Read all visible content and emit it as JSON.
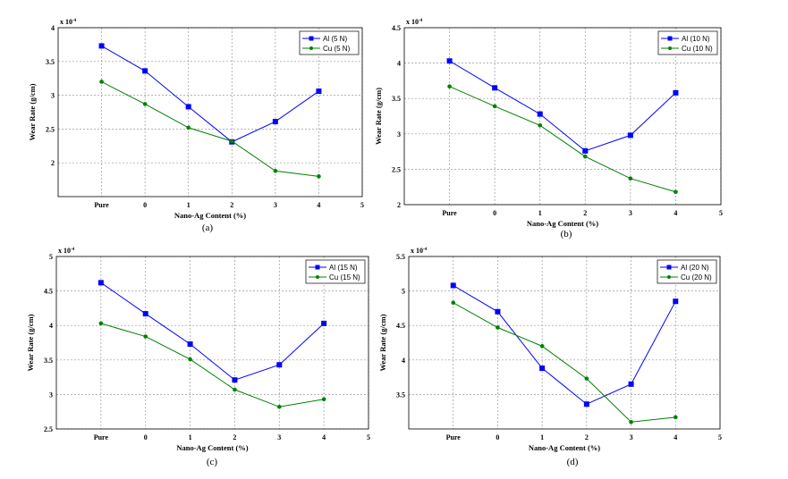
{
  "chart_data": [
    {
      "type": "line",
      "caption": "(a)",
      "xlabel": "Nano-Ag Content (%)",
      "ylabel": "Wear Rate (g/cm)",
      "y_multiplier": "x 10",
      "y_exponent": "-4",
      "x": [
        -1,
        0,
        1,
        2,
        3,
        4
      ],
      "x_tick_values": [
        -1,
        0,
        1,
        2,
        3,
        4,
        5
      ],
      "x_tick_labels": [
        "Pure",
        "0",
        "1",
        "2",
        "3",
        "4",
        "5"
      ],
      "xlim": [
        -2,
        5
      ],
      "ylim": [
        1.5,
        4
      ],
      "y_ticks": [
        2,
        2.5,
        3,
        3.5,
        4
      ],
      "grid": true,
      "legend": "top-right",
      "series": [
        {
          "name": "Al (5 N)",
          "color": "#0000ff",
          "marker": "square",
          "values": [
            3.73,
            3.36,
            2.83,
            2.31,
            2.61,
            3.06
          ]
        },
        {
          "name": "Cu (5 N)",
          "color": "#008000",
          "marker": "circle",
          "values": [
            3.2,
            2.87,
            2.52,
            2.32,
            1.88,
            1.8
          ]
        }
      ]
    },
    {
      "type": "line",
      "caption": "(b)",
      "xlabel": "Nano-Ag Content (%)",
      "ylabel": "Wear Rate (g/cm)",
      "y_multiplier": "x 10",
      "y_exponent": "-4",
      "x": [
        -1,
        0,
        1,
        2,
        3,
        4
      ],
      "x_tick_values": [
        -1,
        0,
        1,
        2,
        3,
        4,
        5
      ],
      "x_tick_labels": [
        "Pure",
        "0",
        "1",
        "2",
        "3",
        "4",
        "5"
      ],
      "xlim": [
        -2,
        5
      ],
      "ylim": [
        2,
        4.5
      ],
      "y_ticks": [
        2,
        2.5,
        3,
        3.5,
        4,
        4.5
      ],
      "grid": true,
      "legend": "top-right",
      "series": [
        {
          "name": "Al (10 N)",
          "color": "#0000ff",
          "marker": "square",
          "values": [
            4.03,
            3.65,
            3.28,
            2.76,
            2.98,
            3.58
          ]
        },
        {
          "name": "Cu (10 N)",
          "color": "#008000",
          "marker": "circle",
          "values": [
            3.67,
            3.39,
            3.12,
            2.68,
            2.37,
            2.18
          ]
        }
      ]
    },
    {
      "type": "line",
      "caption": "(c)",
      "xlabel": "Nano-Ag Content (%)",
      "ylabel": "Wear Rate (g/cm)",
      "y_multiplier": "x 10",
      "y_exponent": "-4",
      "x": [
        -1,
        0,
        1,
        2,
        3,
        4
      ],
      "x_tick_values": [
        -1,
        0,
        1,
        2,
        3,
        4,
        5
      ],
      "x_tick_labels": [
        "Pure",
        "0",
        "1",
        "2",
        "3",
        "4",
        "5"
      ],
      "xlim": [
        -2,
        5
      ],
      "ylim": [
        2.5,
        5
      ],
      "y_ticks": [
        2.5,
        3,
        3.5,
        4,
        4.5,
        5
      ],
      "grid": true,
      "legend": "top-right",
      "series": [
        {
          "name": "Al (15 N)",
          "color": "#0000ff",
          "marker": "square",
          "values": [
            4.62,
            4.17,
            3.73,
            3.21,
            3.43,
            4.03
          ]
        },
        {
          "name": "Cu (15 N)",
          "color": "#008000",
          "marker": "circle",
          "values": [
            4.03,
            3.84,
            3.51,
            3.07,
            2.82,
            2.93
          ]
        }
      ]
    },
    {
      "type": "line",
      "caption": "(d)",
      "xlabel": "Nano-Ag Content (%)",
      "ylabel": "Wear Rate (g/cm)",
      "y_multiplier": "x 10",
      "y_exponent": "-4",
      "x": [
        -1,
        0,
        1,
        2,
        3,
        4
      ],
      "x_tick_values": [
        -1,
        0,
        1,
        2,
        3,
        4,
        5
      ],
      "x_tick_labels": [
        "Pure",
        "0",
        "1",
        "2",
        "3",
        "4",
        "5"
      ],
      "xlim": [
        -2,
        5
      ],
      "ylim": [
        3,
        5.5
      ],
      "y_ticks": [
        3.5,
        4,
        4.5,
        5,
        5.5
      ],
      "grid": true,
      "legend": "top-right",
      "series": [
        {
          "name": "Al (20 N)",
          "color": "#0000ff",
          "marker": "square",
          "values": [
            5.08,
            4.7,
            3.88,
            3.36,
            3.65,
            4.85
          ]
        },
        {
          "name": "Cu (20 N)",
          "color": "#008000",
          "marker": "circle",
          "values": [
            4.83,
            4.47,
            4.2,
            3.73,
            3.1,
            3.17
          ]
        }
      ]
    }
  ]
}
